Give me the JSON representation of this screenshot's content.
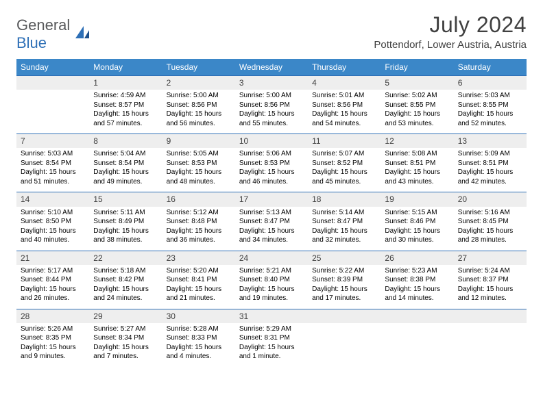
{
  "logo": {
    "word1": "General",
    "word2": "Blue"
  },
  "title": "July 2024",
  "location": "Pottendorf, Lower Austria, Austria",
  "colors": {
    "header_bg": "#3b87c8",
    "header_text": "#ffffff",
    "row_border": "#2d6fb6",
    "daynum_bg": "#eeeeee",
    "daynum_text": "#404040",
    "body_text": "#000000",
    "page_bg": "#ffffff",
    "logo_gray": "#58595b",
    "logo_blue": "#2d6fb6"
  },
  "typography": {
    "title_fontsize": 32,
    "location_fontsize": 15,
    "weekday_fontsize": 12,
    "daynum_fontsize": 12,
    "cell_fontsize": 10
  },
  "weekdays": [
    "Sunday",
    "Monday",
    "Tuesday",
    "Wednesday",
    "Thursday",
    "Friday",
    "Saturday"
  ],
  "weeks": [
    [
      null,
      {
        "n": "1",
        "sunrise": "Sunrise: 4:59 AM",
        "sunset": "Sunset: 8:57 PM",
        "d1": "Daylight: 15 hours",
        "d2": "and 57 minutes."
      },
      {
        "n": "2",
        "sunrise": "Sunrise: 5:00 AM",
        "sunset": "Sunset: 8:56 PM",
        "d1": "Daylight: 15 hours",
        "d2": "and 56 minutes."
      },
      {
        "n": "3",
        "sunrise": "Sunrise: 5:00 AM",
        "sunset": "Sunset: 8:56 PM",
        "d1": "Daylight: 15 hours",
        "d2": "and 55 minutes."
      },
      {
        "n": "4",
        "sunrise": "Sunrise: 5:01 AM",
        "sunset": "Sunset: 8:56 PM",
        "d1": "Daylight: 15 hours",
        "d2": "and 54 minutes."
      },
      {
        "n": "5",
        "sunrise": "Sunrise: 5:02 AM",
        "sunset": "Sunset: 8:55 PM",
        "d1": "Daylight: 15 hours",
        "d2": "and 53 minutes."
      },
      {
        "n": "6",
        "sunrise": "Sunrise: 5:03 AM",
        "sunset": "Sunset: 8:55 PM",
        "d1": "Daylight: 15 hours",
        "d2": "and 52 minutes."
      }
    ],
    [
      {
        "n": "7",
        "sunrise": "Sunrise: 5:03 AM",
        "sunset": "Sunset: 8:54 PM",
        "d1": "Daylight: 15 hours",
        "d2": "and 51 minutes."
      },
      {
        "n": "8",
        "sunrise": "Sunrise: 5:04 AM",
        "sunset": "Sunset: 8:54 PM",
        "d1": "Daylight: 15 hours",
        "d2": "and 49 minutes."
      },
      {
        "n": "9",
        "sunrise": "Sunrise: 5:05 AM",
        "sunset": "Sunset: 8:53 PM",
        "d1": "Daylight: 15 hours",
        "d2": "and 48 minutes."
      },
      {
        "n": "10",
        "sunrise": "Sunrise: 5:06 AM",
        "sunset": "Sunset: 8:53 PM",
        "d1": "Daylight: 15 hours",
        "d2": "and 46 minutes."
      },
      {
        "n": "11",
        "sunrise": "Sunrise: 5:07 AM",
        "sunset": "Sunset: 8:52 PM",
        "d1": "Daylight: 15 hours",
        "d2": "and 45 minutes."
      },
      {
        "n": "12",
        "sunrise": "Sunrise: 5:08 AM",
        "sunset": "Sunset: 8:51 PM",
        "d1": "Daylight: 15 hours",
        "d2": "and 43 minutes."
      },
      {
        "n": "13",
        "sunrise": "Sunrise: 5:09 AM",
        "sunset": "Sunset: 8:51 PM",
        "d1": "Daylight: 15 hours",
        "d2": "and 42 minutes."
      }
    ],
    [
      {
        "n": "14",
        "sunrise": "Sunrise: 5:10 AM",
        "sunset": "Sunset: 8:50 PM",
        "d1": "Daylight: 15 hours",
        "d2": "and 40 minutes."
      },
      {
        "n": "15",
        "sunrise": "Sunrise: 5:11 AM",
        "sunset": "Sunset: 8:49 PM",
        "d1": "Daylight: 15 hours",
        "d2": "and 38 minutes."
      },
      {
        "n": "16",
        "sunrise": "Sunrise: 5:12 AM",
        "sunset": "Sunset: 8:48 PM",
        "d1": "Daylight: 15 hours",
        "d2": "and 36 minutes."
      },
      {
        "n": "17",
        "sunrise": "Sunrise: 5:13 AM",
        "sunset": "Sunset: 8:47 PM",
        "d1": "Daylight: 15 hours",
        "d2": "and 34 minutes."
      },
      {
        "n": "18",
        "sunrise": "Sunrise: 5:14 AM",
        "sunset": "Sunset: 8:47 PM",
        "d1": "Daylight: 15 hours",
        "d2": "and 32 minutes."
      },
      {
        "n": "19",
        "sunrise": "Sunrise: 5:15 AM",
        "sunset": "Sunset: 8:46 PM",
        "d1": "Daylight: 15 hours",
        "d2": "and 30 minutes."
      },
      {
        "n": "20",
        "sunrise": "Sunrise: 5:16 AM",
        "sunset": "Sunset: 8:45 PM",
        "d1": "Daylight: 15 hours",
        "d2": "and 28 minutes."
      }
    ],
    [
      {
        "n": "21",
        "sunrise": "Sunrise: 5:17 AM",
        "sunset": "Sunset: 8:44 PM",
        "d1": "Daylight: 15 hours",
        "d2": "and 26 minutes."
      },
      {
        "n": "22",
        "sunrise": "Sunrise: 5:18 AM",
        "sunset": "Sunset: 8:42 PM",
        "d1": "Daylight: 15 hours",
        "d2": "and 24 minutes."
      },
      {
        "n": "23",
        "sunrise": "Sunrise: 5:20 AM",
        "sunset": "Sunset: 8:41 PM",
        "d1": "Daylight: 15 hours",
        "d2": "and 21 minutes."
      },
      {
        "n": "24",
        "sunrise": "Sunrise: 5:21 AM",
        "sunset": "Sunset: 8:40 PM",
        "d1": "Daylight: 15 hours",
        "d2": "and 19 minutes."
      },
      {
        "n": "25",
        "sunrise": "Sunrise: 5:22 AM",
        "sunset": "Sunset: 8:39 PM",
        "d1": "Daylight: 15 hours",
        "d2": "and 17 minutes."
      },
      {
        "n": "26",
        "sunrise": "Sunrise: 5:23 AM",
        "sunset": "Sunset: 8:38 PM",
        "d1": "Daylight: 15 hours",
        "d2": "and 14 minutes."
      },
      {
        "n": "27",
        "sunrise": "Sunrise: 5:24 AM",
        "sunset": "Sunset: 8:37 PM",
        "d1": "Daylight: 15 hours",
        "d2": "and 12 minutes."
      }
    ],
    [
      {
        "n": "28",
        "sunrise": "Sunrise: 5:26 AM",
        "sunset": "Sunset: 8:35 PM",
        "d1": "Daylight: 15 hours",
        "d2": "and 9 minutes."
      },
      {
        "n": "29",
        "sunrise": "Sunrise: 5:27 AM",
        "sunset": "Sunset: 8:34 PM",
        "d1": "Daylight: 15 hours",
        "d2": "and 7 minutes."
      },
      {
        "n": "30",
        "sunrise": "Sunrise: 5:28 AM",
        "sunset": "Sunset: 8:33 PM",
        "d1": "Daylight: 15 hours",
        "d2": "and 4 minutes."
      },
      {
        "n": "31",
        "sunrise": "Sunrise: 5:29 AM",
        "sunset": "Sunset: 8:31 PM",
        "d1": "Daylight: 15 hours",
        "d2": "and 1 minute."
      },
      null,
      null,
      null
    ]
  ]
}
